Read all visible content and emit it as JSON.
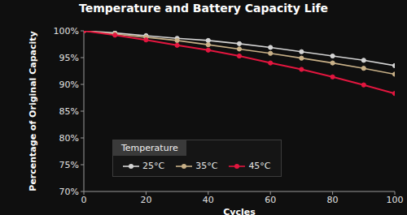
{
  "chart_data": {
    "type": "line",
    "title": "Temperature and Battery Capacity Life",
    "x_label": "Cycles",
    "y_label": "Percentage of Original Capacity",
    "x": [
      0,
      10,
      20,
      30,
      40,
      50,
      60,
      70,
      80,
      90,
      100
    ],
    "series": [
      {
        "name": "25°C",
        "color": "#d4d4d4",
        "marker": "circle",
        "line_style": "solid",
        "values": [
          100,
          99.6,
          99.1,
          98.6,
          98.2,
          97.6,
          96.9,
          96.1,
          95.3,
          94.5,
          93.5
        ]
      },
      {
        "name": "35°C",
        "color": "#c9b188",
        "marker": "circle",
        "line_style": "solid",
        "values": [
          100,
          99.4,
          98.8,
          98.2,
          97.4,
          96.6,
          95.8,
          94.9,
          94.0,
          93.0,
          91.9
        ]
      },
      {
        "name": "45°C",
        "color": "#e3163f",
        "marker": "circle",
        "line_style": "solid",
        "values": [
          100,
          99.2,
          98.3,
          97.3,
          96.4,
          95.3,
          94.0,
          92.8,
          91.4,
          89.9,
          88.3
        ]
      }
    ],
    "xlim": [
      0,
      100
    ],
    "xticks": [
      0,
      20,
      40,
      60,
      80,
      100
    ],
    "ylim": [
      70,
      100
    ],
    "yticks": [
      {
        "value": 70,
        "label": "70%"
      },
      {
        "value": 75,
        "label": "75%"
      },
      {
        "value": 80,
        "label": "80%"
      },
      {
        "value": 85,
        "label": "85%"
      },
      {
        "value": 90,
        "label": "90%"
      },
      {
        "value": 95,
        "label": "95%"
      },
      {
        "value": 100,
        "label": "100%"
      }
    ],
    "grid": false,
    "legend": "lower left",
    "legend_title": "Temperature"
  }
}
